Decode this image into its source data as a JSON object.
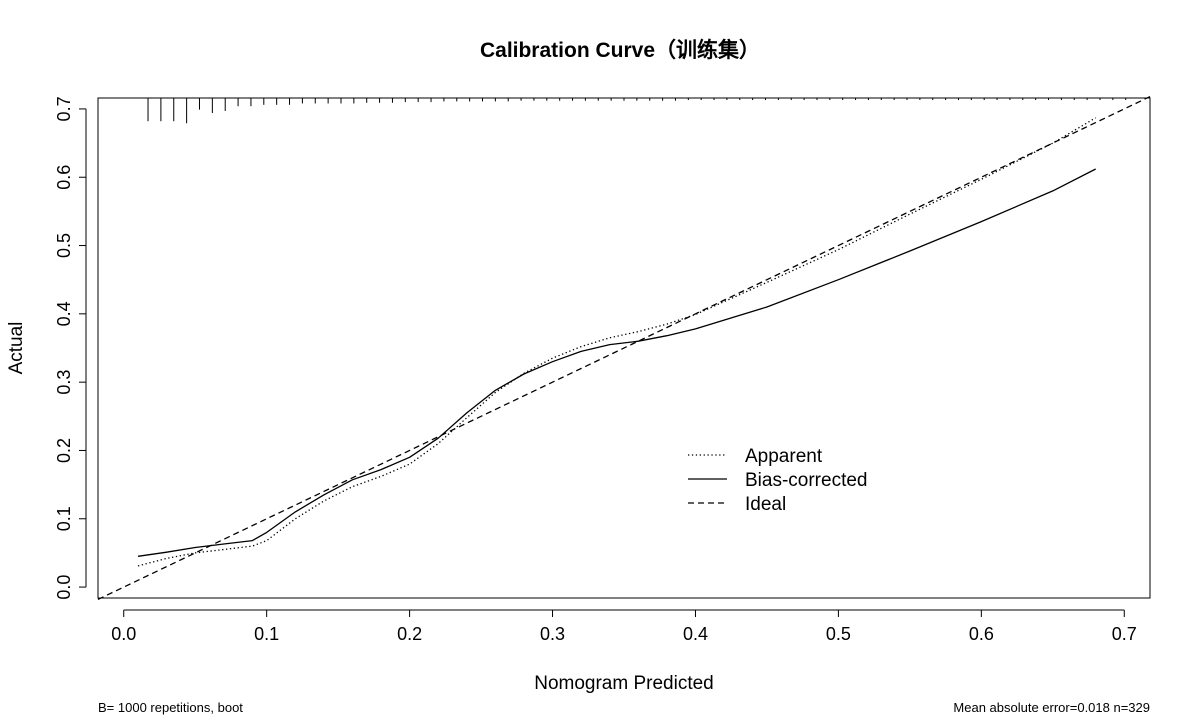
{
  "chart_data": {
    "type": "line",
    "title": "Calibration Curve（训练集）",
    "xlabel": "Nomogram Predicted",
    "ylabel": "Actual",
    "xlim": [
      -0.018,
      0.718
    ],
    "ylim": [
      -0.016,
      0.716
    ],
    "x_ticks": [
      {
        "value": 0.0,
        "label": "0.0"
      },
      {
        "value": 0.1,
        "label": "0.1"
      },
      {
        "value": 0.2,
        "label": "0.2"
      },
      {
        "value": 0.3,
        "label": "0.3"
      },
      {
        "value": 0.4,
        "label": "0.4"
      },
      {
        "value": 0.5,
        "label": "0.5"
      },
      {
        "value": 0.6,
        "label": "0.6"
      },
      {
        "value": 0.7,
        "label": "0.7"
      }
    ],
    "y_ticks": [
      {
        "value": 0.0,
        "label": "0.0"
      },
      {
        "value": 0.1,
        "label": "0.1"
      },
      {
        "value": 0.2,
        "label": "0.2"
      },
      {
        "value": 0.3,
        "label": "0.3"
      },
      {
        "value": 0.4,
        "label": "0.4"
      },
      {
        "value": 0.5,
        "label": "0.5"
      },
      {
        "value": 0.6,
        "label": "0.6"
      },
      {
        "value": 0.7,
        "label": "0.7"
      }
    ],
    "grid": false,
    "legend_position": "center-right",
    "series": [
      {
        "name": "Apparent",
        "style": "dotted",
        "x": [
          0.01,
          0.03,
          0.05,
          0.07,
          0.09,
          0.1,
          0.12,
          0.14,
          0.16,
          0.18,
          0.2,
          0.22,
          0.24,
          0.26,
          0.28,
          0.3,
          0.32,
          0.34,
          0.36,
          0.38,
          0.4,
          0.45,
          0.5,
          0.55,
          0.6,
          0.65,
          0.68
        ],
        "y": [
          0.031,
          0.042,
          0.05,
          0.055,
          0.06,
          0.068,
          0.1,
          0.126,
          0.147,
          0.162,
          0.18,
          0.21,
          0.248,
          0.285,
          0.313,
          0.335,
          0.352,
          0.365,
          0.374,
          0.385,
          0.399,
          0.446,
          0.494,
          0.546,
          0.597,
          0.65,
          0.687
        ]
      },
      {
        "name": "Bias-corrected",
        "style": "solid",
        "x": [
          0.01,
          0.03,
          0.05,
          0.07,
          0.09,
          0.1,
          0.12,
          0.14,
          0.16,
          0.18,
          0.2,
          0.22,
          0.24,
          0.26,
          0.28,
          0.3,
          0.32,
          0.34,
          0.36,
          0.38,
          0.4,
          0.45,
          0.5,
          0.55,
          0.6,
          0.65,
          0.68
        ],
        "y": [
          0.045,
          0.051,
          0.058,
          0.063,
          0.068,
          0.08,
          0.11,
          0.135,
          0.157,
          0.172,
          0.19,
          0.218,
          0.255,
          0.288,
          0.312,
          0.33,
          0.345,
          0.355,
          0.36,
          0.368,
          0.378,
          0.41,
          0.45,
          0.492,
          0.535,
          0.58,
          0.612
        ]
      },
      {
        "name": "Ideal",
        "style": "dashed",
        "x": [
          -0.018,
          0.718
        ],
        "y": [
          -0.018,
          0.718
        ]
      }
    ],
    "rug_ticks": [
      {
        "x": 0.017,
        "h": 0.034
      },
      {
        "x": 0.026,
        "h": 0.034
      },
      {
        "x": 0.035,
        "h": 0.034
      },
      {
        "x": 0.044,
        "h": 0.037
      },
      {
        "x": 0.053,
        "h": 0.017
      },
      {
        "x": 0.062,
        "h": 0.022
      },
      {
        "x": 0.071,
        "h": 0.019
      },
      {
        "x": 0.08,
        "h": 0.012
      },
      {
        "x": 0.089,
        "h": 0.012
      },
      {
        "x": 0.098,
        "h": 0.01
      },
      {
        "x": 0.107,
        "h": 0.01
      },
      {
        "x": 0.116,
        "h": 0.01
      },
      {
        "x": 0.125,
        "h": 0.008
      },
      {
        "x": 0.134,
        "h": 0.008
      },
      {
        "x": 0.143,
        "h": 0.008
      },
      {
        "x": 0.152,
        "h": 0.008
      },
      {
        "x": 0.161,
        "h": 0.008
      },
      {
        "x": 0.17,
        "h": 0.007
      },
      {
        "x": 0.179,
        "h": 0.007
      },
      {
        "x": 0.188,
        "h": 0.007
      },
      {
        "x": 0.197,
        "h": 0.006
      },
      {
        "x": 0.206,
        "h": 0.006
      },
      {
        "x": 0.215,
        "h": 0.006
      },
      {
        "x": 0.224,
        "h": 0.005
      },
      {
        "x": 0.233,
        "h": 0.005
      },
      {
        "x": 0.242,
        "h": 0.005
      },
      {
        "x": 0.251,
        "h": 0.005
      },
      {
        "x": 0.26,
        "h": 0.005
      },
      {
        "x": 0.269,
        "h": 0.005
      },
      {
        "x": 0.278,
        "h": 0.004
      },
      {
        "x": 0.287,
        "h": 0.004
      },
      {
        "x": 0.296,
        "h": 0.004
      },
      {
        "x": 0.305,
        "h": 0.004
      },
      {
        "x": 0.314,
        "h": 0.004
      },
      {
        "x": 0.323,
        "h": 0.004
      },
      {
        "x": 0.332,
        "h": 0.004
      },
      {
        "x": 0.341,
        "h": 0.004
      },
      {
        "x": 0.35,
        "h": 0.004
      },
      {
        "x": 0.359,
        "h": 0.004
      },
      {
        "x": 0.368,
        "h": 0.004
      },
      {
        "x": 0.377,
        "h": 0.004
      },
      {
        "x": 0.386,
        "h": 0.004
      },
      {
        "x": 0.395,
        "h": 0.003
      },
      {
        "x": 0.404,
        "h": 0.003
      },
      {
        "x": 0.413,
        "h": 0.003
      },
      {
        "x": 0.422,
        "h": 0.003
      },
      {
        "x": 0.431,
        "h": 0.003
      },
      {
        "x": 0.44,
        "h": 0.003
      },
      {
        "x": 0.449,
        "h": 0.003
      },
      {
        "x": 0.458,
        "h": 0.003
      },
      {
        "x": 0.467,
        "h": 0.003
      },
      {
        "x": 0.476,
        "h": 0.003
      },
      {
        "x": 0.485,
        "h": 0.003
      },
      {
        "x": 0.494,
        "h": 0.003
      },
      {
        "x": 0.503,
        "h": 0.003
      },
      {
        "x": 0.512,
        "h": 0.003
      },
      {
        "x": 0.521,
        "h": 0.003
      },
      {
        "x": 0.53,
        "h": 0.003
      },
      {
        "x": 0.539,
        "h": 0.003
      },
      {
        "x": 0.548,
        "h": 0.003
      },
      {
        "x": 0.557,
        "h": 0.003
      },
      {
        "x": 0.566,
        "h": 0.003
      },
      {
        "x": 0.575,
        "h": 0.003
      },
      {
        "x": 0.584,
        "h": 0.003
      },
      {
        "x": 0.593,
        "h": 0.003
      },
      {
        "x": 0.602,
        "h": 0.003
      },
      {
        "x": 0.611,
        "h": 0.003
      },
      {
        "x": 0.62,
        "h": 0.003
      },
      {
        "x": 0.629,
        "h": 0.003
      },
      {
        "x": 0.638,
        "h": 0.003
      },
      {
        "x": 0.647,
        "h": 0.003
      },
      {
        "x": 0.656,
        "h": 0.003
      },
      {
        "x": 0.665,
        "h": 0.003
      },
      {
        "x": 0.674,
        "h": 0.003
      },
      {
        "x": 0.683,
        "h": 0.003
      },
      {
        "x": 0.692,
        "h": 0.003
      },
      {
        "x": 0.701,
        "h": 0.003
      }
    ],
    "annotations": {
      "bottom_left": "B= 1000 repetitions, boot",
      "bottom_right": "Mean absolute error=0.018 n=329"
    }
  }
}
